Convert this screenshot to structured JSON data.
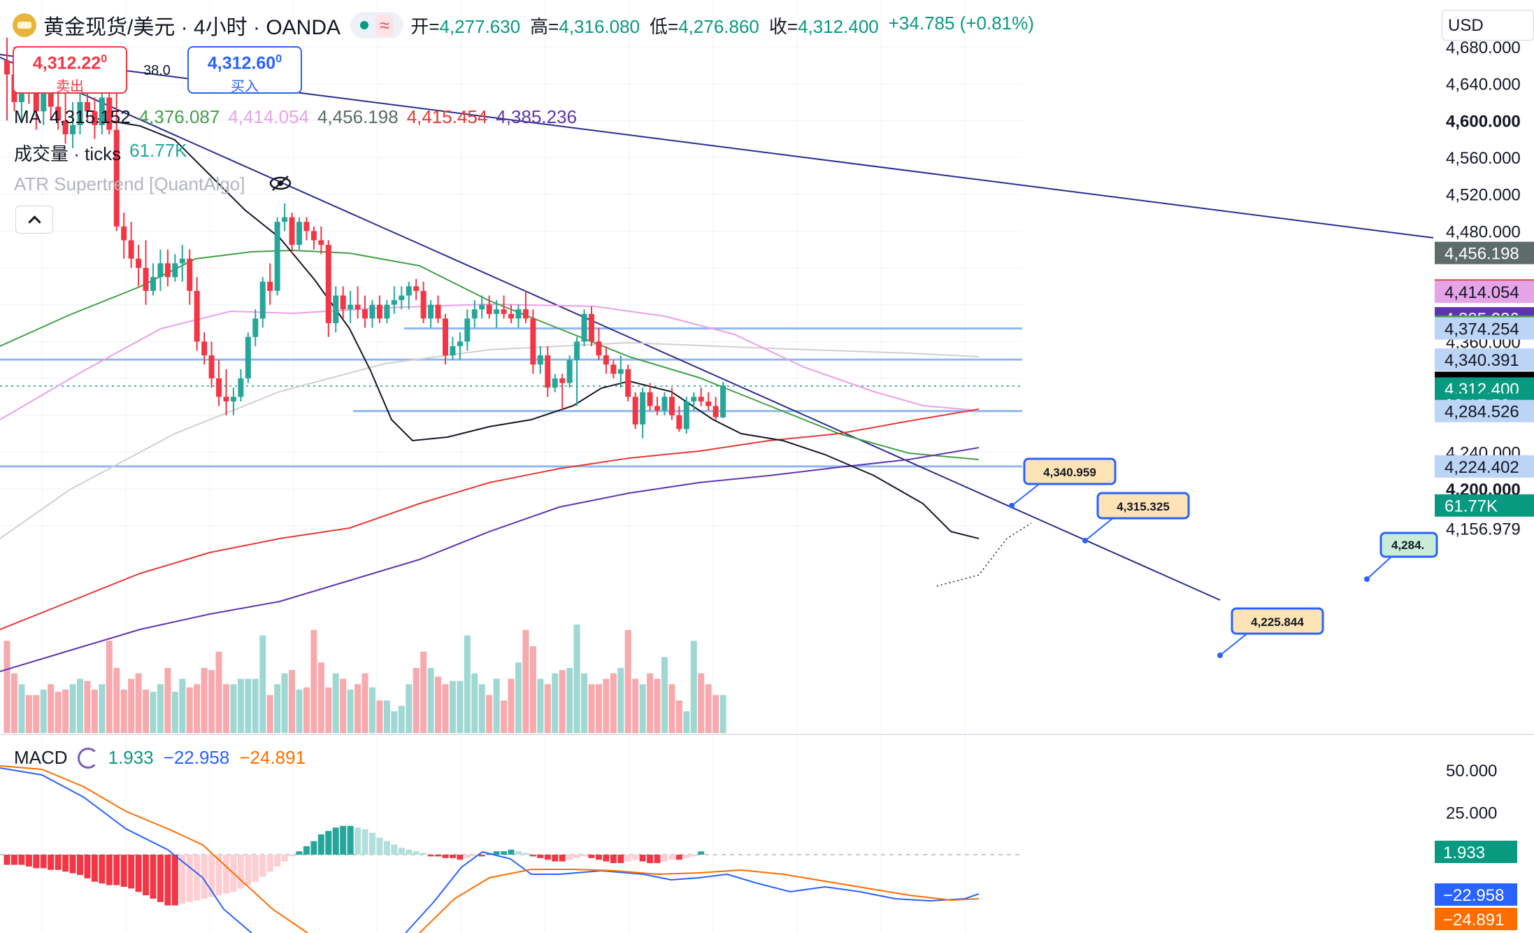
{
  "header": {
    "symbol": "黄金现货/美元 · 4小时 · OANDA",
    "ohlc": [
      {
        "k": "开=",
        "v": "4,277.630"
      },
      {
        "k": "高=",
        "v": "4,316.080"
      },
      {
        "k": "低=",
        "v": "4,276.860"
      },
      {
        "k": "收=",
        "v": "4,312.400"
      }
    ],
    "change": "+34.785 (+0.81%)",
    "currency": "USD"
  },
  "trade": {
    "sell_price": "4,312.22",
    "sell_sup": "0",
    "sell_label": "卖出",
    "buy_price": "4,312.60",
    "buy_sup": "0",
    "buy_label": "买入",
    "spread": "38.0"
  },
  "legends": {
    "ma_label": "MA",
    "ma_values": [
      "4,315.152",
      "4,376.087",
      "4,414.054",
      "4,456.198",
      "4,415.454",
      "4,385.236"
    ],
    "volume_label": "成交量 · ticks",
    "volume_value": "61.77K",
    "atr_label": "ATR Supertrend [QuantAlgo]",
    "macd_label": "MACD",
    "macd_values": [
      "1.933",
      "−22.958",
      "−24.891"
    ]
  },
  "colors": {
    "up": "#26a69a",
    "down": "#f23645",
    "ma_colors": [
      "#000000",
      "#43a047",
      "#e9a0e8",
      "#bdbdbd",
      "#e53935",
      "#5e35b1"
    ],
    "trend": "#2b2c8f",
    "hline": "#90b8f0"
  },
  "price_axis": {
    "ticks": [
      "4,680.000",
      "4,640.000",
      "4,600.000",
      "4,560.000",
      "4,520.000",
      "4,480.000",
      "4,360.000",
      "4,240.000",
      "4,200.000",
      "4,156.979"
    ],
    "tags": [
      {
        "text": "4,456.198",
        "bg": "#5d6b6a",
        "fg": "#ffffff",
        "price": 4456.198
      },
      {
        "text": "4,415.454",
        "bg": "#e53935",
        "fg": "#ffffff",
        "price": 4415.454
      },
      {
        "text": "4,414.054",
        "bg": "#e6a4e8",
        "fg": "#131722",
        "price": 4414.054
      },
      {
        "text": "4,385.236",
        "bg": "#5e35b1",
        "fg": "#ffffff",
        "price": 4385.236
      },
      {
        "text": "4,376.087",
        "bg": "#43a047",
        "fg": "#ffffff",
        "price": 4376.087
      },
      {
        "text": "4,374.254",
        "bg": "#bcd4f5",
        "fg": "#131722",
        "price": 4374.254
      },
      {
        "text": "4,340.391",
        "bg": "#bcd4f5",
        "fg": "#131722",
        "price": 4340.391
      },
      {
        "text": "4,315.152",
        "bg": "#000000",
        "fg": "#ffffff",
        "price": 4315.152
      },
      {
        "text": "4,312.400",
        "bg": "#089981",
        "fg": "#ffffff",
        "price": 4309.0
      },
      {
        "text": "02:17:50",
        "bg": "#089981",
        "fg": "#ffffff",
        "price": 4291.5
      },
      {
        "text": "4,284.526",
        "bg": "#bcd4f5",
        "fg": "#131722",
        "price": 4284.526
      },
      {
        "text": "4,224.402",
        "bg": "#bcd4f5",
        "fg": "#131722",
        "price": 4224.402
      },
      {
        "text": "61.77K",
        "bg": "#089981",
        "fg": "#ffffff",
        "price": 4182.0
      }
    ]
  },
  "macd_axis": {
    "ticks": [
      "50.000",
      "25.000"
    ],
    "tags": [
      {
        "text": "1.933",
        "bg": "#089981",
        "fg": "#ffffff",
        "value": 1.933
      },
      {
        "text": "−22.958",
        "bg": "#2962ff",
        "fg": "#ffffff",
        "value": -22.958
      },
      {
        "text": "−24.891",
        "bg": "#ff6d00",
        "fg": "#ffffff",
        "value": -24.891
      }
    ]
  },
  "callouts": [
    "4,340.959",
    "4,315.325",
    "4,225.844",
    "4,284."
  ],
  "chart_data": {
    "type": "candlestick",
    "timeframe": "4h",
    "ylim": [
      4150,
      4700
    ],
    "candles": [
      {
        "o": 4665,
        "h": 4690,
        "l": 4600,
        "c": 4650
      },
      {
        "o": 4650,
        "h": 4680,
        "l": 4610,
        "c": 4620
      },
      {
        "o": 4620,
        "h": 4670,
        "l": 4600,
        "c": 4655
      },
      {
        "o": 4655,
        "h": 4668,
        "l": 4618,
        "c": 4632
      },
      {
        "o": 4632,
        "h": 4650,
        "l": 4590,
        "c": 4610
      },
      {
        "o": 4610,
        "h": 4645,
        "l": 4595,
        "c": 4630
      },
      {
        "o": 4630,
        "h": 4650,
        "l": 4600,
        "c": 4615
      },
      {
        "o": 4615,
        "h": 4640,
        "l": 4590,
        "c": 4600
      },
      {
        "o": 4600,
        "h": 4630,
        "l": 4575,
        "c": 4585
      },
      {
        "o": 4585,
        "h": 4620,
        "l": 4570,
        "c": 4595
      },
      {
        "o": 4595,
        "h": 4630,
        "l": 4585,
        "c": 4620
      },
      {
        "o": 4620,
        "h": 4640,
        "l": 4600,
        "c": 4610
      },
      {
        "o": 4610,
        "h": 4625,
        "l": 4580,
        "c": 4595
      },
      {
        "o": 4595,
        "h": 4635,
        "l": 4585,
        "c": 4625
      },
      {
        "o": 4625,
        "h": 4640,
        "l": 4585,
        "c": 4590
      },
      {
        "o": 4590,
        "h": 4640,
        "l": 4480,
        "c": 4485
      },
      {
        "o": 4485,
        "h": 4500,
        "l": 4450,
        "c": 4470
      },
      {
        "o": 4470,
        "h": 4490,
        "l": 4440,
        "c": 4450
      },
      {
        "o": 4450,
        "h": 4465,
        "l": 4420,
        "c": 4440
      },
      {
        "o": 4440,
        "h": 4470,
        "l": 4400,
        "c": 4415
      },
      {
        "o": 4415,
        "h": 4445,
        "l": 4410,
        "c": 4430
      },
      {
        "o": 4430,
        "h": 4460,
        "l": 4415,
        "c": 4445
      },
      {
        "o": 4445,
        "h": 4460,
        "l": 4420,
        "c": 4430
      },
      {
        "o": 4430,
        "h": 4455,
        "l": 4425,
        "c": 4445
      },
      {
        "o": 4445,
        "h": 4465,
        "l": 4425,
        "c": 4450
      },
      {
        "o": 4450,
        "h": 4460,
        "l": 4400,
        "c": 4415
      },
      {
        "o": 4415,
        "h": 4430,
        "l": 4350,
        "c": 4360
      },
      {
        "o": 4360,
        "h": 4370,
        "l": 4335,
        "c": 4345
      },
      {
        "o": 4345,
        "h": 4360,
        "l": 4310,
        "c": 4320
      },
      {
        "o": 4320,
        "h": 4340,
        "l": 4290,
        "c": 4300
      },
      {
        "o": 4300,
        "h": 4330,
        "l": 4280,
        "c": 4295
      },
      {
        "o": 4295,
        "h": 4310,
        "l": 4280,
        "c": 4300
      },
      {
        "o": 4300,
        "h": 4330,
        "l": 4295,
        "c": 4320
      },
      {
        "o": 4320,
        "h": 4370,
        "l": 4315,
        "c": 4365
      },
      {
        "o": 4365,
        "h": 4395,
        "l": 4355,
        "c": 4385
      },
      {
        "o": 4385,
        "h": 4430,
        "l": 4375,
        "c": 4425
      },
      {
        "o": 4425,
        "h": 4445,
        "l": 4400,
        "c": 4415
      },
      {
        "o": 4415,
        "h": 4495,
        "l": 4410,
        "c": 4490
      },
      {
        "o": 4490,
        "h": 4510,
        "l": 4480,
        "c": 4495
      },
      {
        "o": 4495,
        "h": 4500,
        "l": 4455,
        "c": 4465
      },
      {
        "o": 4465,
        "h": 4495,
        "l": 4460,
        "c": 4490
      },
      {
        "o": 4490,
        "h": 4495,
        "l": 4470,
        "c": 4480
      },
      {
        "o": 4480,
        "h": 4485,
        "l": 4460,
        "c": 4470
      },
      {
        "o": 4470,
        "h": 4485,
        "l": 4455,
        "c": 4465
      },
      {
        "o": 4465,
        "h": 4470,
        "l": 4365,
        "c": 4380
      },
      {
        "o": 4380,
        "h": 4420,
        "l": 4370,
        "c": 4410
      },
      {
        "o": 4410,
        "h": 4420,
        "l": 4385,
        "c": 4395
      },
      {
        "o": 4395,
        "h": 4415,
        "l": 4380,
        "c": 4400
      },
      {
        "o": 4400,
        "h": 4420,
        "l": 4385,
        "c": 4395
      },
      {
        "o": 4395,
        "h": 4410,
        "l": 4375,
        "c": 4385
      },
      {
        "o": 4385,
        "h": 4405,
        "l": 4375,
        "c": 4400
      },
      {
        "o": 4400,
        "h": 4410,
        "l": 4380,
        "c": 4385
      },
      {
        "o": 4385,
        "h": 4405,
        "l": 4380,
        "c": 4400
      },
      {
        "o": 4400,
        "h": 4420,
        "l": 4390,
        "c": 4405
      },
      {
        "o": 4405,
        "h": 4420,
        "l": 4395,
        "c": 4410
      },
      {
        "o": 4410,
        "h": 4425,
        "l": 4395,
        "c": 4420
      },
      {
        "o": 4420,
        "h": 4428,
        "l": 4405,
        "c": 4415
      },
      {
        "o": 4415,
        "h": 4425,
        "l": 4380,
        "c": 4385
      },
      {
        "o": 4385,
        "h": 4405,
        "l": 4375,
        "c": 4400
      },
      {
        "o": 4400,
        "h": 4410,
        "l": 4380,
        "c": 4385
      },
      {
        "o": 4385,
        "h": 4390,
        "l": 4335,
        "c": 4345
      },
      {
        "o": 4345,
        "h": 4365,
        "l": 4340,
        "c": 4355
      },
      {
        "o": 4355,
        "h": 4370,
        "l": 4340,
        "c": 4360
      },
      {
        "o": 4360,
        "h": 4395,
        "l": 4350,
        "c": 4385
      },
      {
        "o": 4385,
        "h": 4405,
        "l": 4375,
        "c": 4395
      },
      {
        "o": 4395,
        "h": 4410,
        "l": 4385,
        "c": 4400
      },
      {
        "o": 4400,
        "h": 4410,
        "l": 4385,
        "c": 4390
      },
      {
        "o": 4390,
        "h": 4405,
        "l": 4375,
        "c": 4395
      },
      {
        "o": 4395,
        "h": 4410,
        "l": 4385,
        "c": 4390
      },
      {
        "o": 4390,
        "h": 4400,
        "l": 4380,
        "c": 4385
      },
      {
        "o": 4385,
        "h": 4400,
        "l": 4375,
        "c": 4395
      },
      {
        "o": 4395,
        "h": 4415,
        "l": 4380,
        "c": 4385
      },
      {
        "o": 4385,
        "h": 4395,
        "l": 4325,
        "c": 4335
      },
      {
        "o": 4335,
        "h": 4355,
        "l": 4325,
        "c": 4345
      },
      {
        "o": 4345,
        "h": 4355,
        "l": 4300,
        "c": 4310
      },
      {
        "o": 4310,
        "h": 4325,
        "l": 4305,
        "c": 4320
      },
      {
        "o": 4320,
        "h": 4325,
        "l": 4285,
        "c": 4315
      },
      {
        "o": 4315,
        "h": 4345,
        "l": 4310,
        "c": 4340
      },
      {
        "o": 4340,
        "h": 4365,
        "l": 4290,
        "c": 4360
      },
      {
        "o": 4360,
        "h": 4395,
        "l": 4355,
        "c": 4390
      },
      {
        "o": 4390,
        "h": 4398,
        "l": 4355,
        "c": 4360
      },
      {
        "o": 4360,
        "h": 4375,
        "l": 4340,
        "c": 4345
      },
      {
        "o": 4345,
        "h": 4355,
        "l": 4325,
        "c": 4335
      },
      {
        "o": 4335,
        "h": 4340,
        "l": 4320,
        "c": 4325
      },
      {
        "o": 4325,
        "h": 4345,
        "l": 4310,
        "c": 4330
      },
      {
        "o": 4330,
        "h": 4335,
        "l": 4295,
        "c": 4300
      },
      {
        "o": 4300,
        "h": 4305,
        "l": 4265,
        "c": 4270
      },
      {
        "o": 4270,
        "h": 4310,
        "l": 4255,
        "c": 4305
      },
      {
        "o": 4305,
        "h": 4315,
        "l": 4285,
        "c": 4290
      },
      {
        "o": 4290,
        "h": 4300,
        "l": 4280,
        "c": 4285
      },
      {
        "o": 4285,
        "h": 4305,
        "l": 4280,
        "c": 4300
      },
      {
        "o": 4300,
        "h": 4310,
        "l": 4275,
        "c": 4280
      },
      {
        "o": 4280,
        "h": 4290,
        "l": 4262,
        "c": 4265
      },
      {
        "o": 4265,
        "h": 4300,
        "l": 4260,
        "c": 4295
      },
      {
        "o": 4295,
        "h": 4305,
        "l": 4285,
        "c": 4300
      },
      {
        "o": 4300,
        "h": 4310,
        "l": 4290,
        "c": 4295
      },
      {
        "o": 4295,
        "h": 4305,
        "l": 4285,
        "c": 4290
      },
      {
        "o": 4290,
        "h": 4300,
        "l": 4275,
        "c": 4278
      },
      {
        "o": 4277.63,
        "h": 4316.08,
        "l": 4276.86,
        "c": 4312.4
      }
    ],
    "volume_profile": [
      0.85,
      0.55,
      0.45,
      0.35,
      0.35,
      0.4,
      0.45,
      0.38,
      0.4,
      0.45,
      0.5,
      0.48,
      0.4,
      0.45,
      0.85,
      0.6,
      0.4,
      0.5,
      0.55,
      0.4,
      0.38,
      0.45,
      0.6,
      0.38,
      0.5,
      0.42,
      0.45,
      0.6,
      0.58,
      0.75,
      0.45,
      0.45,
      0.5,
      0.5,
      0.5,
      0.9,
      0.35,
      0.45,
      0.55,
      0.58,
      0.4,
      0.42,
      0.95,
      0.65,
      0.42,
      0.55,
      0.5,
      0.4,
      0.45,
      0.55,
      0.42,
      0.3,
      0.3,
      0.2,
      0.25,
      0.45,
      0.6,
      0.75,
      0.6,
      0.52,
      0.45,
      0.48,
      0.48,
      0.9,
      0.55,
      0.45,
      0.35,
      0.5,
      0.3,
      0.5,
      0.65,
      0.95,
      0.8,
      0.5,
      0.45,
      0.55,
      0.58,
      0.6,
      1.0,
      0.55,
      0.45,
      0.45,
      0.5,
      0.55,
      0.6,
      0.95,
      0.5,
      0.45,
      0.55,
      0.5,
      0.7,
      0.45,
      0.3,
      0.2
    ],
    "horizontal_levels": [
      4374.254,
      4340.391,
      4284.526,
      4224.402
    ],
    "last_price": 4312.4,
    "ma": {
      "ma1": 4315.152,
      "ma2": 4376.087,
      "ma3": 4414.054,
      "ma4": 4456.198,
      "ma5": 4415.454,
      "ma6": 4385.236
    },
    "volume_last": "61.77K",
    "macd": {
      "hist": 1.933,
      "macd": -22.958,
      "signal": -24.891,
      "ylim": [
        -80,
        60
      ]
    }
  }
}
